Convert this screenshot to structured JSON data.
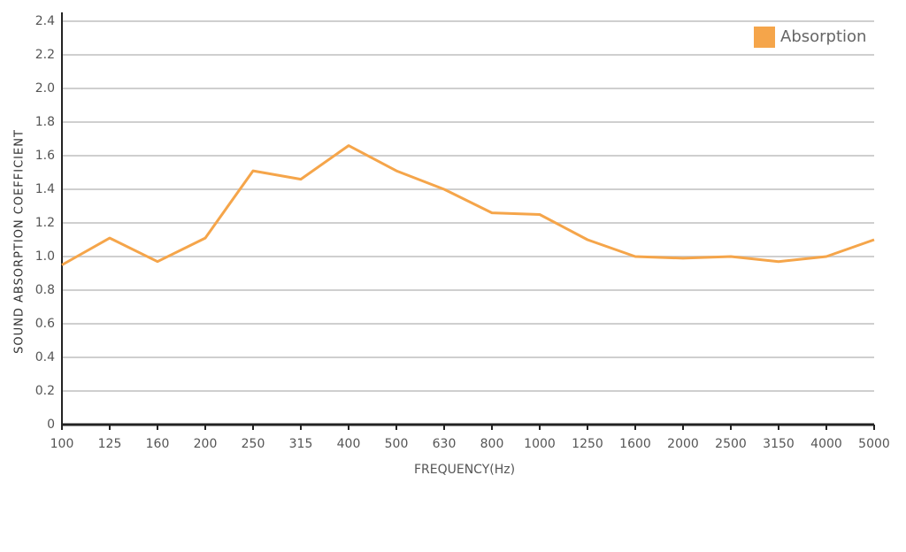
{
  "chart_data": {
    "type": "line",
    "xlabel": "FREQUENCY(Hz)",
    "ylabel": "SOUND ABSORPTION COEFFICIENT",
    "categories": [
      "100",
      "125",
      "160",
      "200",
      "250",
      "315",
      "400",
      "500",
      "630",
      "800",
      "1000",
      "1250",
      "1600",
      "2000",
      "2500",
      "3150",
      "4000",
      "5000"
    ],
    "series": [
      {
        "name": "Absorption",
        "color": "#f5a54a",
        "values": [
          0.95,
          1.11,
          0.97,
          1.11,
          1.51,
          1.46,
          1.66,
          1.51,
          1.4,
          1.26,
          1.25,
          1.1,
          1.0,
          0.99,
          1.0,
          0.97,
          1.0,
          1.1
        ]
      }
    ],
    "ylim": [
      0,
      2.4
    ],
    "yticks": [
      0,
      0.2,
      0.4,
      0.6,
      0.8,
      {
        "value": 1,
        "label": "1.0"
      },
      1.2,
      1.4,
      1.6,
      1.8,
      {
        "value": 2,
        "label": "2.0"
      },
      2.2,
      2.4
    ],
    "grid": true,
    "legend": "top-right"
  }
}
